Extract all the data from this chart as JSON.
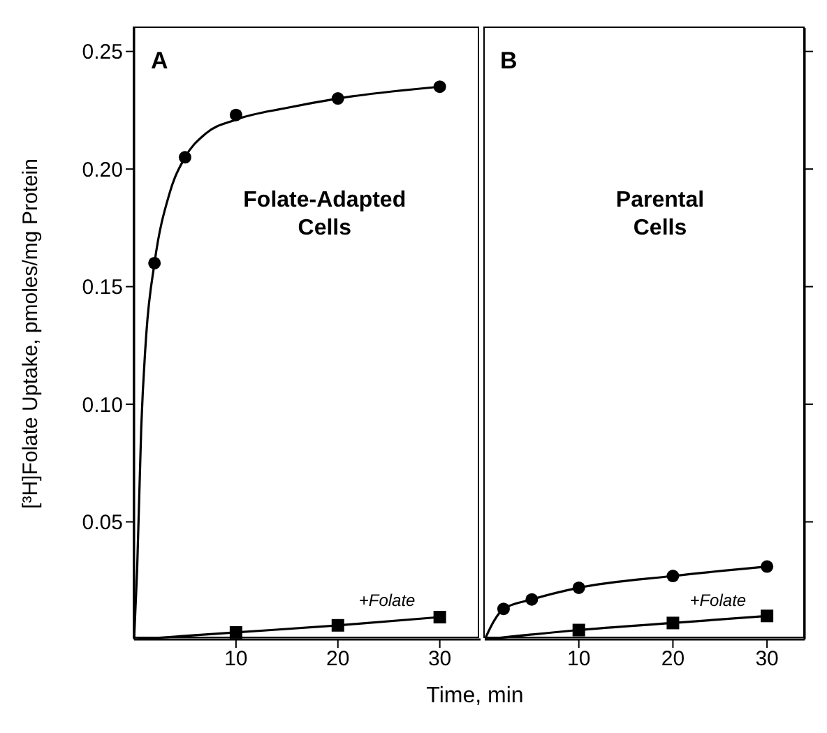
{
  "chart_data": [
    {
      "type": "scatter",
      "ylabel": "[³H]Folate Uptake, pmoles/mg Protein",
      "xlabel": "Time, min",
      "xlim": [
        0,
        34
      ],
      "xticks": [
        10,
        20,
        30
      ],
      "ylim": [
        0,
        0.26
      ],
      "yticks": [
        {
          "value": 0.05,
          "label": "0.05"
        },
        {
          "value": 0.1,
          "label": "0.10"
        },
        {
          "value": 0.15,
          "label": "0.15"
        },
        {
          "value": 0.2,
          "label": "0.20"
        },
        {
          "value": 0.25,
          "label": "0.25"
        }
      ],
      "annotations": [
        "A",
        "Folate-Adapted Cells",
        "+Folate"
      ],
      "series": [
        {
          "marker": "circle",
          "color": "#000000",
          "x": [
            2,
            5,
            10,
            20,
            30
          ],
          "values": [
            0.16,
            0.205,
            0.223,
            0.23,
            0.235
          ]
        },
        {
          "marker": "square",
          "color": "#000000",
          "x": [
            10,
            20,
            30
          ],
          "values": [
            0.003,
            0.006,
            0.0095
          ]
        },
        {
          "type": "line",
          "marker": "none",
          "color": "#000000",
          "x": [
            0,
            0.3,
            0.7,
            1.2,
            2,
            3.5,
            5,
            7,
            10,
            15,
            20,
            30
          ],
          "values": [
            0,
            0.03,
            0.09,
            0.13,
            0.16,
            0.19,
            0.205,
            0.215,
            0.221,
            0.226,
            0.23,
            0.235
          ]
        },
        {
          "type": "line",
          "marker": "none",
          "color": "#000000",
          "x": [
            0,
            10,
            20,
            30
          ],
          "values": [
            0,
            0.003,
            0.006,
            0.0095
          ]
        }
      ]
    },
    {
      "type": "scatter",
      "tick_labels": "x",
      "xlim": [
        0,
        34
      ],
      "xticks": [
        10,
        20,
        30
      ],
      "ylim": [
        0,
        0.26
      ],
      "yticks": [
        0.05,
        0.1,
        0.15,
        0.2,
        0.25
      ],
      "annotations": [
        "B",
        "Parental Cells",
        "+Folate"
      ],
      "series": [
        {
          "marker": "circle",
          "color": "#000000",
          "x": [
            2,
            5,
            10,
            20,
            30
          ],
          "values": [
            0.013,
            0.017,
            0.022,
            0.027,
            0.031
          ]
        },
        {
          "marker": "square",
          "color": "#000000",
          "x": [
            10,
            20,
            30
          ],
          "values": [
            0.004,
            0.007,
            0.01
          ]
        },
        {
          "type": "line",
          "marker": "none",
          "color": "#000000",
          "x": [
            0,
            1,
            2,
            5,
            10,
            20,
            30
          ],
          "values": [
            0,
            0.008,
            0.013,
            0.017,
            0.022,
            0.027,
            0.031
          ]
        },
        {
          "type": "line",
          "marker": "none",
          "color": "#000000",
          "x": [
            0,
            10,
            20,
            30
          ],
          "values": [
            0,
            0.004,
            0.007,
            0.01
          ]
        }
      ]
    }
  ]
}
